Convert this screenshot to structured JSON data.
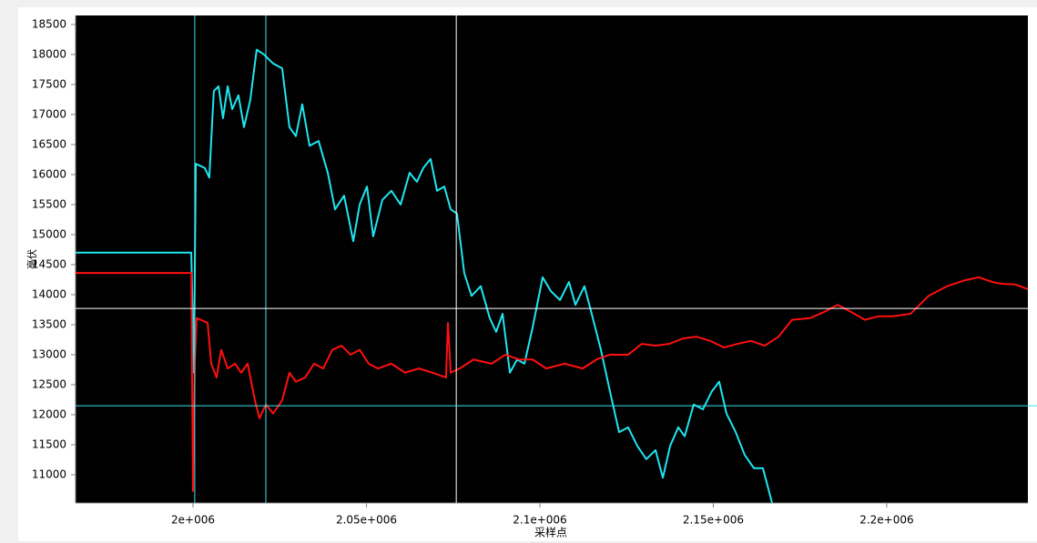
{
  "chart_data": {
    "type": "line",
    "xlabel": "采样点",
    "ylabel": "毫伏",
    "xlim": [
      1966140,
      2240700
    ],
    "ylim": [
      10530,
      18650
    ],
    "xticks": [
      {
        "value": 2000000,
        "label": "2e+006"
      },
      {
        "value": 2050000,
        "label": "2.05e+006"
      },
      {
        "value": 2100000,
        "label": "2.1e+006"
      },
      {
        "value": 2150000,
        "label": "2.15e+006"
      },
      {
        "value": 2200000,
        "label": "2.2e+006"
      }
    ],
    "yticks": [
      11000,
      11500,
      12000,
      12500,
      13000,
      13500,
      14000,
      14500,
      15000,
      15500,
      16000,
      16500,
      17000,
      17500,
      18000,
      18500
    ],
    "grid": false,
    "background": "#000000",
    "vlines": [
      {
        "x": 2000500,
        "color": "#40e0e8"
      },
      {
        "x": 2021000,
        "color": "#40e0e8"
      },
      {
        "x": 2075900,
        "color": "#ffffff"
      }
    ],
    "hlines": [
      {
        "y": 13770,
        "color": "#ffffff"
      },
      {
        "y": 12150,
        "color": "#40e0e8"
      }
    ],
    "series": [
      {
        "color": "#1ee6f0",
        "x": [
          1966140,
          1983700,
          1999500,
          2000260,
          2000800,
          2003400,
          2004700,
          2006000,
          2007350,
          2008650,
          2010000,
          2011300,
          2013100,
          2014700,
          2016500,
          2018350,
          2020450,
          2023100,
          2025700,
          2027800,
          2029650,
          2031500,
          2033600,
          2036200,
          2038850,
          2040950,
          2043550,
          2046200,
          2048050,
          2050150,
          2051950,
          2054600,
          2057200,
          2059850,
          2062450,
          2064550,
          2066400,
          2068500,
          2070350,
          2072450,
          2074300,
          2076100,
          2078200,
          2080300,
          2082950,
          2085550,
          2087400,
          2089250,
          2091350,
          2093450,
          2095550,
          2097900,
          2100800,
          2103150,
          2105800,
          2108400,
          2110250,
          2112850,
          2114950,
          2117600,
          2120200,
          2122850,
          2125450,
          2128100,
          2130700,
          2133350,
          2135450,
          2137550,
          2139900,
          2141750,
          2144350,
          2147000,
          2149600,
          2151700,
          2153800,
          2156450,
          2159050,
          2161700,
          2164300,
          2166950
        ],
        "values": [
          14700,
          14700,
          14700,
          12700,
          16180,
          16110,
          15950,
          17390,
          17470,
          16940,
          17470,
          17090,
          17320,
          16790,
          17240,
          18080,
          18000,
          17850,
          17770,
          16790,
          16640,
          17170,
          16480,
          16560,
          16030,
          15420,
          15650,
          14890,
          15500,
          15800,
          14970,
          15580,
          15730,
          15500,
          16030,
          15880,
          16110,
          16260,
          15730,
          15800,
          15420,
          15350,
          14360,
          13980,
          14140,
          13610,
          13380,
          13680,
          12700,
          12920,
          12850,
          13450,
          14290,
          14060,
          13910,
          14210,
          13830,
          14140,
          13680,
          13080,
          12390,
          11710,
          11790,
          11480,
          11260,
          11410,
          10950,
          11480,
          11790,
          11640,
          12170,
          12090,
          12390,
          12550,
          12020,
          11710,
          11330,
          11110,
          11110,
          10530
        ]
      },
      {
        "color": "#ff1010",
        "x": [
          1966140,
          1983700,
          1999500,
          2000000,
          2000500,
          2001050,
          2004200,
          2005250,
          2006800,
          2008150,
          2010000,
          2012100,
          2013900,
          2015750,
          2017850,
          2019150,
          2021000,
          2023100,
          2025700,
          2027800,
          2029650,
          2032300,
          2034900,
          2037550,
          2040150,
          2042800,
          2045400,
          2048050,
          2050650,
          2053300,
          2057200,
          2061150,
          2065100,
          2069050,
          2072950,
          2073500,
          2074300,
          2076900,
          2080850,
          2086100,
          2090050,
          2093950,
          2097900,
          2101850,
          2107100,
          2112350,
          2116300,
          2120200,
          2125450,
          2129400,
          2133350,
          2137300,
          2141250,
          2145150,
          2149100,
          2153050,
          2156950,
          2160900,
          2164850,
          2168800,
          2172700,
          2177950,
          2181900,
          2185850,
          2189800,
          2193700,
          2197650,
          2201600,
          2206850,
          2212100,
          2217350,
          2222600,
          2226550,
          2230450,
          2233100,
          2237050,
          2240700
        ],
        "values": [
          14360,
          14360,
          14360,
          10730,
          12850,
          13610,
          13530,
          12850,
          12620,
          13080,
          12770,
          12850,
          12700,
          12850,
          12240,
          11940,
          12170,
          12020,
          12240,
          12700,
          12550,
          12620,
          12850,
          12770,
          13080,
          13150,
          13000,
          13080,
          12850,
          12770,
          12850,
          12700,
          12770,
          12700,
          12620,
          13530,
          12700,
          12770,
          12920,
          12850,
          13000,
          12920,
          12920,
          12770,
          12850,
          12770,
          12920,
          13000,
          13000,
          13180,
          13150,
          13180,
          13270,
          13300,
          13230,
          13120,
          13180,
          13230,
          13150,
          13300,
          13580,
          13610,
          13710,
          13830,
          13710,
          13580,
          13640,
          13640,
          13680,
          13980,
          14140,
          14240,
          14290,
          14210,
          14180,
          14170,
          14090
        ]
      }
    ]
  }
}
